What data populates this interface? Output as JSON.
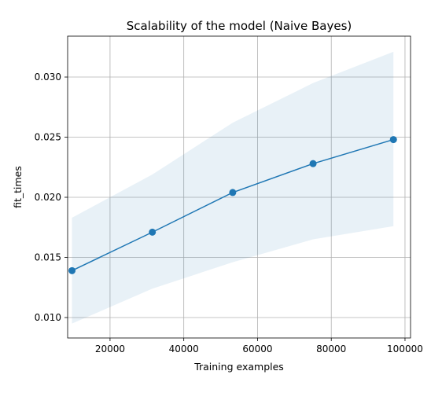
{
  "chart_data": {
    "type": "line",
    "title": "Scalability of the model (Naive Bayes)",
    "xlabel": "Training examples",
    "ylabel": "fit_times",
    "xlim": [
      8500,
      101500
    ],
    "ylim": [
      0.0083,
      0.0334
    ],
    "x_ticks": [
      20000,
      40000,
      60000,
      80000,
      100000
    ],
    "x_tick_labels": [
      "20000",
      "40000",
      "60000",
      "80000",
      "100000"
    ],
    "y_ticks": [
      0.01,
      0.015,
      0.02,
      0.025,
      0.03
    ],
    "y_tick_labels": [
      "0.010",
      "0.015",
      "0.020",
      "0.025",
      "0.030"
    ],
    "grid": true,
    "series": [
      {
        "x": [
          9686,
          31478,
          53271,
          75064,
          96857
        ],
        "values": [
          0.0139,
          0.0171,
          0.0204,
          0.0228,
          0.0248
        ],
        "lower": [
          0.0095,
          0.0124,
          0.0146,
          0.0165,
          0.0176
        ],
        "upper": [
          0.0183,
          0.0219,
          0.0262,
          0.0295,
          0.0321
        ]
      }
    ],
    "colors": {
      "line": "#1f77b4",
      "band": "#1f77b4",
      "grid": "#b0b0b0",
      "axes": "#000000"
    }
  }
}
